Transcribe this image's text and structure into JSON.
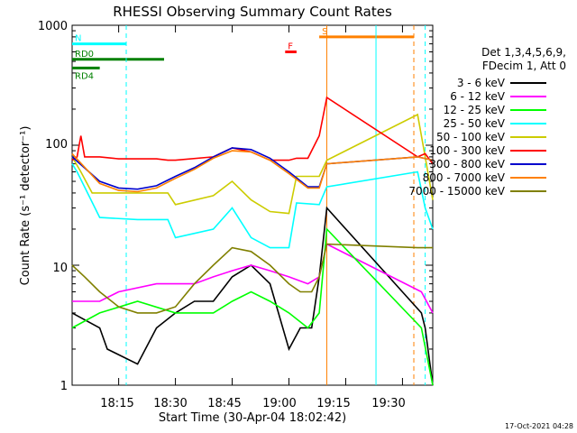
{
  "chart_data": {
    "type": "line",
    "title": "RHESSI Observing Summary Count Rates",
    "xlabel": "Start Time (30-Apr-04 18:02:42)",
    "ylabel": "Count Rate (s⁻¹ detector⁻¹)",
    "yscale": "log",
    "ylim": [
      1,
      1000
    ],
    "xlim": [
      "18:02:42",
      "19:38:00"
    ],
    "x_ticks": [
      "18:15",
      "18:30",
      "18:45",
      "19:00",
      "19:15",
      "19:30"
    ],
    "y_ticks": [
      "1",
      "10",
      "100",
      "1000"
    ],
    "legend_header": [
      "Det 1,3,4,5,6,9,",
      "FDecim 1, Att 0"
    ],
    "footer": "17-Oct-2021 04:28",
    "series": [
      {
        "name": "3 - 6 keV",
        "color": "#000000",
        "x": [
          "18:02:42",
          "18:10",
          "18:12",
          "18:20",
          "18:25",
          "18:30",
          "18:35",
          "18:40",
          "18:45",
          "18:50",
          "18:55",
          "19:00",
          "19:03",
          "19:06",
          "19:08",
          "19:10",
          "19:35",
          "19:36",
          "19:38"
        ],
        "y": [
          4,
          3,
          2,
          1.5,
          3,
          4,
          5,
          5,
          8,
          10,
          7,
          2,
          3,
          3,
          8,
          30,
          4,
          3,
          1
        ]
      },
      {
        "name": "6 - 12 keV",
        "color": "#ff00ff",
        "x": [
          "18:02:42",
          "18:10",
          "18:15",
          "18:25",
          "18:30",
          "18:35",
          "18:40",
          "18:45",
          "18:50",
          "18:55",
          "19:00",
          "19:05",
          "19:08",
          "19:10",
          "19:35",
          "19:38"
        ],
        "y": [
          5,
          5,
          6,
          7,
          7,
          7,
          8,
          9,
          10,
          9,
          8,
          7,
          8,
          15,
          6,
          4
        ]
      },
      {
        "name": "12 - 25 keV",
        "color": "#00ff00",
        "x": [
          "18:02:42",
          "18:10",
          "18:20",
          "18:30",
          "18:40",
          "18:45",
          "18:50",
          "18:55",
          "19:00",
          "19:05",
          "19:08",
          "19:10",
          "19:35",
          "19:38"
        ],
        "y": [
          3,
          4,
          5,
          4,
          4,
          5,
          6,
          5,
          4,
          3,
          4,
          20,
          3,
          1
        ]
      },
      {
        "name": "25 - 50 keV",
        "color": "#00ffff",
        "x": [
          "18:02:42",
          "18:04",
          "18:10",
          "18:20",
          "18:28",
          "18:30",
          "18:40",
          "18:45",
          "18:50",
          "18:55",
          "19:00",
          "19:02",
          "19:08",
          "19:10",
          "19:34",
          "19:36",
          "19:38"
        ],
        "y": [
          70,
          60,
          25,
          24,
          24,
          17,
          20,
          30,
          17,
          14,
          14,
          33,
          32,
          45,
          60,
          30,
          20
        ]
      },
      {
        "name": "50 - 100 keV",
        "color": "#cccc00",
        "x": [
          "18:02:42",
          "18:05",
          "18:08",
          "18:15",
          "18:25",
          "18:28",
          "18:30",
          "18:40",
          "18:45",
          "18:50",
          "18:55",
          "19:00",
          "19:02",
          "19:08",
          "19:10",
          "19:34",
          "19:36",
          "19:38"
        ],
        "y": [
          80,
          60,
          40,
          40,
          40,
          40,
          32,
          38,
          50,
          35,
          28,
          27,
          55,
          55,
          75,
          180,
          80,
          35
        ]
      },
      {
        "name": "100 - 300 keV",
        "color": "#ff0000",
        "x": [
          "18:02:42",
          "18:04",
          "18:05",
          "18:06",
          "18:10",
          "18:15",
          "18:25",
          "18:28",
          "18:30",
          "18:40",
          "18:45",
          "18:50",
          "18:55",
          "19:00",
          "19:02",
          "19:05",
          "19:08",
          "19:10",
          "19:34",
          "19:36",
          "19:38"
        ],
        "y": [
          75,
          80,
          120,
          80,
          80,
          77,
          77,
          75,
          75,
          80,
          95,
          88,
          75,
          75,
          78,
          78,
          120,
          250,
          80,
          85,
          70
        ]
      },
      {
        "name": "300 - 800 keV",
        "color": "#0000cc",
        "x": [
          "18:02:42",
          "18:10",
          "18:15",
          "18:20",
          "18:25",
          "18:30",
          "18:35",
          "18:40",
          "18:45",
          "18:50",
          "18:55",
          "19:00",
          "19:05",
          "19:08",
          "19:10",
          "19:34",
          "19:38"
        ],
        "y": [
          80,
          50,
          44,
          43,
          46,
          55,
          65,
          80,
          95,
          92,
          78,
          60,
          45,
          45,
          70,
          80,
          75
        ]
      },
      {
        "name": "800 - 7000 keV",
        "color": "#ff8000",
        "x": [
          "18:02:42",
          "18:10",
          "18:15",
          "18:20",
          "18:25",
          "18:30",
          "18:35",
          "18:40",
          "18:45",
          "18:50",
          "18:55",
          "19:00",
          "19:05",
          "19:08",
          "19:10",
          "19:34",
          "19:38"
        ],
        "y": [
          85,
          48,
          42,
          41,
          44,
          53,
          63,
          78,
          90,
          88,
          75,
          58,
          44,
          44,
          70,
          80,
          75
        ]
      },
      {
        "name": "7000 - 15000 keV",
        "color": "#808000",
        "x": [
          "18:02:42",
          "18:06",
          "18:10",
          "18:15",
          "18:20",
          "18:25",
          "18:30",
          "18:35",
          "18:40",
          "18:45",
          "18:50",
          "18:55",
          "19:00",
          "19:03",
          "19:06",
          "19:08",
          "19:10",
          "19:34",
          "19:38"
        ],
        "y": [
          10,
          8,
          6,
          4.5,
          4,
          4,
          4.5,
          7,
          10,
          14,
          13,
          10,
          7,
          6,
          6,
          8,
          15,
          14,
          14
        ]
      }
    ],
    "annotations": [
      {
        "label": "N",
        "color": "#00ffff",
        "y": 700,
        "x_start": "18:02:42",
        "x_end": "18:17"
      },
      {
        "label": "RD0",
        "color": "#008000",
        "y": 520,
        "x_start": "18:02:42",
        "x_end": "18:27"
      },
      {
        "label": "RD4",
        "color": "#008000",
        "y": 440,
        "x_start": "18:02:42",
        "x_end": "18:10"
      },
      {
        "label": "F",
        "color": "#ff0000",
        "y": 600,
        "x_start": "18:59",
        "x_end": "19:02"
      },
      {
        "label": "S",
        "color": "#ff8000",
        "y": 800,
        "x_start": "19:08",
        "x_end": "19:33"
      }
    ],
    "vlines": [
      {
        "x": "18:17",
        "color": "#00ffff",
        "style": "dashed"
      },
      {
        "x": "19:10",
        "color": "#ff8000",
        "style": "solid"
      },
      {
        "x": "19:23",
        "color": "#00ffff",
        "style": "solid"
      },
      {
        "x": "19:33",
        "color": "#ff8000",
        "style": "dashed"
      },
      {
        "x": "19:36",
        "color": "#00ffff",
        "style": "dashed"
      }
    ]
  }
}
